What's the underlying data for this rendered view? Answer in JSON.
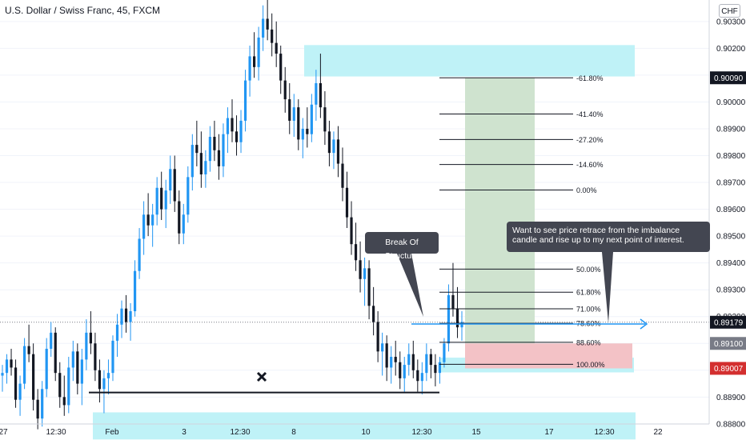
{
  "header": {
    "symbol_title": "U.S. Dollar / Swiss Franc, 45, FXCM",
    "currency_button": "CHF"
  },
  "annotations": {
    "break_of_structure": "Break Of Structure",
    "note": "Want to see price retrace from the imbalance candle and rise up to my next point of interest."
  },
  "chart_data": {
    "type": "candlestick",
    "symbol": "U.S. Dollar / Swiss Franc",
    "interval": "45",
    "source": "FXCM",
    "currency": "CHF",
    "ylim": [
      0.8874,
      0.9038
    ],
    "y_tick_labels": [
      "0.90300",
      "0.90200",
      "0.90100",
      "0.90000",
      "0.89900",
      "0.89800",
      "0.89700",
      "0.89600",
      "0.89500",
      "0.89400",
      "0.89300",
      "0.89200",
      "0.89100",
      "0.89000",
      "0.88900",
      "0.88800"
    ],
    "y_ticks": [
      0.903,
      0.902,
      0.901,
      0.9,
      0.899,
      0.898,
      0.897,
      0.896,
      0.895,
      0.894,
      0.893,
      0.892,
      0.891,
      0.89,
      0.889,
      0.888
    ],
    "x_tick_labels": [
      "27",
      "12:30",
      "Feb",
      "3",
      "12:30",
      "8",
      "10",
      "12:30",
      "15",
      "17",
      "12:30",
      "22"
    ],
    "price_labels": [
      {
        "text": "0.90090",
        "value": 0.9009,
        "color": "#131722"
      },
      {
        "text": "0.89179",
        "value": 0.89179,
        "color": "#131722"
      },
      {
        "text": "0.89100",
        "value": 0.891,
        "color": "#787b86"
      },
      {
        "text": "0.89007",
        "value": 0.89007,
        "color": "#d32f2f"
      }
    ],
    "current_price": 0.89179,
    "fib_levels": [
      {
        "label": "-61.80%",
        "value": 0.9009
      },
      {
        "label": "-41.40%",
        "value": 0.89955
      },
      {
        "label": "-27.20%",
        "value": 0.8986
      },
      {
        "label": "-14.60%",
        "value": 0.89767
      },
      {
        "label": "0.00%",
        "value": 0.89672
      },
      {
        "label": "50.00%",
        "value": 0.89377
      },
      {
        "label": "61.80%",
        "value": 0.89291
      },
      {
        "label": "71.00%",
        "value": 0.89229
      },
      {
        "label": "78.60%",
        "value": 0.89175
      },
      {
        "label": "88.60%",
        "value": 0.89104
      },
      {
        "label": "100.00%",
        "value": 0.89022
      }
    ],
    "zones": [
      {
        "name": "supply-zone",
        "top": 0.90212,
        "bottom": 0.90095,
        "color": "#bff2f7"
      },
      {
        "name": "imbalance-zone",
        "top": 0.89047,
        "bottom": 0.88992,
        "color": "#bff2f7"
      },
      {
        "name": "demand-zone",
        "top": 0.88843,
        "bottom": 0.88742,
        "color": "#bff2f7"
      }
    ],
    "position": {
      "target": 0.9009,
      "entry": 0.891,
      "stop": 0.89007,
      "profit_color": "#cfe3cf",
      "loss_color": "#f3c2c6"
    },
    "structure_low": 0.88917,
    "candles_key": [
      "open",
      "high",
      "low",
      "close"
    ],
    "candles": [
      [
        0.8898,
        0.8902,
        0.8892,
        0.8899
      ],
      [
        0.8899,
        0.8906,
        0.8895,
        0.8904
      ],
      [
        0.8904,
        0.8908,
        0.8898,
        0.8901
      ],
      [
        0.8901,
        0.8904,
        0.8886,
        0.8889
      ],
      [
        0.8889,
        0.8898,
        0.8883,
        0.8895
      ],
      [
        0.8895,
        0.8912,
        0.8893,
        0.8909
      ],
      [
        0.8909,
        0.8917,
        0.8903,
        0.8906
      ],
      [
        0.8906,
        0.891,
        0.8885,
        0.8889
      ],
      [
        0.8889,
        0.8893,
        0.8878,
        0.8882
      ],
      [
        0.8882,
        0.8896,
        0.8879,
        0.8893
      ],
      [
        0.8893,
        0.8912,
        0.889,
        0.8908
      ],
      [
        0.8908,
        0.8918,
        0.8905,
        0.8914
      ],
      [
        0.8914,
        0.8916,
        0.8896,
        0.8899
      ],
      [
        0.8899,
        0.8903,
        0.8886,
        0.889
      ],
      [
        0.889,
        0.8898,
        0.8883,
        0.8887
      ],
      [
        0.8887,
        0.8905,
        0.8884,
        0.8901
      ],
      [
        0.8901,
        0.8911,
        0.8896,
        0.8907
      ],
      [
        0.8907,
        0.891,
        0.8891,
        0.8895
      ],
      [
        0.8895,
        0.8908,
        0.8887,
        0.8904
      ],
      [
        0.8904,
        0.8919,
        0.89,
        0.8914
      ],
      [
        0.8914,
        0.8922,
        0.8906,
        0.891
      ],
      [
        0.891,
        0.8914,
        0.8896,
        0.89
      ],
      [
        0.89,
        0.8904,
        0.8888,
        0.8893
      ],
      [
        0.8893,
        0.89,
        0.8884,
        0.8897
      ],
      [
        0.8897,
        0.8904,
        0.8891,
        0.8899
      ],
      [
        0.8899,
        0.8913,
        0.8896,
        0.8911
      ],
      [
        0.8911,
        0.8921,
        0.8905,
        0.8917
      ],
      [
        0.8917,
        0.8926,
        0.8912,
        0.8923
      ],
      [
        0.8923,
        0.8928,
        0.8914,
        0.8918
      ],
      [
        0.8918,
        0.8925,
        0.8911,
        0.8922
      ],
      [
        0.8922,
        0.8941,
        0.892,
        0.8937
      ],
      [
        0.8937,
        0.8953,
        0.8934,
        0.8949
      ],
      [
        0.8949,
        0.8963,
        0.8943,
        0.8958
      ],
      [
        0.8958,
        0.8966,
        0.895,
        0.8954
      ],
      [
        0.8954,
        0.8962,
        0.8946,
        0.8958
      ],
      [
        0.8958,
        0.8972,
        0.8954,
        0.8968
      ],
      [
        0.8968,
        0.8974,
        0.8956,
        0.896
      ],
      [
        0.896,
        0.8971,
        0.8953,
        0.8967
      ],
      [
        0.8967,
        0.898,
        0.8962,
        0.8975
      ],
      [
        0.8975,
        0.898,
        0.8959,
        0.8963
      ],
      [
        0.8963,
        0.8967,
        0.8947,
        0.8951
      ],
      [
        0.8951,
        0.8962,
        0.8947,
        0.8958
      ],
      [
        0.8958,
        0.8976,
        0.8955,
        0.8972
      ],
      [
        0.8972,
        0.8988,
        0.8967,
        0.8984
      ],
      [
        0.8984,
        0.8993,
        0.8976,
        0.8981
      ],
      [
        0.8981,
        0.8989,
        0.8968,
        0.8973
      ],
      [
        0.8973,
        0.8982,
        0.8968,
        0.8978
      ],
      [
        0.8978,
        0.8991,
        0.8974,
        0.8987
      ],
      [
        0.8987,
        0.8993,
        0.8978,
        0.8982
      ],
      [
        0.8982,
        0.8988,
        0.8971,
        0.8976
      ],
      [
        0.8976,
        0.8992,
        0.8972,
        0.8988
      ],
      [
        0.8988,
        0.8998,
        0.8981,
        0.8994
      ],
      [
        0.8994,
        0.9001,
        0.8985,
        0.8989
      ],
      [
        0.8989,
        0.8995,
        0.898,
        0.8985
      ],
      [
        0.8985,
        0.8997,
        0.8981,
        0.8993
      ],
      [
        0.8993,
        0.9012,
        0.8989,
        0.9008
      ],
      [
        0.9008,
        0.9021,
        0.9002,
        0.9017
      ],
      [
        0.9017,
        0.9026,
        0.9009,
        0.9013
      ],
      [
        0.9013,
        0.9028,
        0.9008,
        0.9024
      ],
      [
        0.9024,
        0.9036,
        0.9019,
        0.9031
      ],
      [
        0.9031,
        0.9038,
        0.9023,
        0.9027
      ],
      [
        0.9027,
        0.9033,
        0.9017,
        0.9022
      ],
      [
        0.9022,
        0.903,
        0.9013,
        0.9018
      ],
      [
        0.9018,
        0.9021,
        0.9003,
        0.9008
      ],
      [
        0.9008,
        0.9013,
        0.8996,
        0.9001
      ],
      [
        0.9001,
        0.9007,
        0.8988,
        0.8993
      ],
      [
        0.8993,
        0.9003,
        0.8987,
        0.8998
      ],
      [
        0.8998,
        0.9001,
        0.8982,
        0.8986
      ],
      [
        0.8986,
        0.8994,
        0.8979,
        0.899
      ],
      [
        0.899,
        0.8998,
        0.8983,
        0.8988
      ],
      [
        0.8988,
        0.9003,
        0.8985,
        0.8999
      ],
      [
        0.8999,
        0.9012,
        0.8993,
        0.9007
      ],
      [
        0.9007,
        0.9018,
        0.8994,
        0.8998
      ],
      [
        0.8998,
        0.9004,
        0.8984,
        0.8989
      ],
      [
        0.8989,
        0.8993,
        0.8976,
        0.8981
      ],
      [
        0.8981,
        0.8989,
        0.8975,
        0.8986
      ],
      [
        0.8986,
        0.8991,
        0.8972,
        0.8977
      ],
      [
        0.8977,
        0.8983,
        0.8963,
        0.8968
      ],
      [
        0.8968,
        0.8974,
        0.8953,
        0.8957
      ],
      [
        0.8957,
        0.8963,
        0.8943,
        0.8947
      ],
      [
        0.8947,
        0.8955,
        0.8937,
        0.8941
      ],
      [
        0.8941,
        0.8948,
        0.8929,
        0.8934
      ],
      [
        0.8934,
        0.8942,
        0.8924,
        0.8938
      ],
      [
        0.8938,
        0.8941,
        0.8919,
        0.8924
      ],
      [
        0.8924,
        0.8931,
        0.8913,
        0.8918
      ],
      [
        0.8918,
        0.8922,
        0.8903,
        0.8907
      ],
      [
        0.8907,
        0.8914,
        0.8898,
        0.891
      ],
      [
        0.891,
        0.8913,
        0.8896,
        0.8901
      ],
      [
        0.8901,
        0.8909,
        0.8895,
        0.8905
      ],
      [
        0.8905,
        0.8911,
        0.8898,
        0.8903
      ],
      [
        0.8903,
        0.8907,
        0.8893,
        0.8897
      ],
      [
        0.8897,
        0.8905,
        0.8892,
        0.8902
      ],
      [
        0.8902,
        0.891,
        0.8898,
        0.8906
      ],
      [
        0.8906,
        0.8911,
        0.8897,
        0.89
      ],
      [
        0.89,
        0.8904,
        0.8892,
        0.8896
      ],
      [
        0.8896,
        0.8903,
        0.8891,
        0.8899
      ],
      [
        0.8899,
        0.891,
        0.8896,
        0.8906
      ],
      [
        0.8906,
        0.8908,
        0.8897,
        0.8902
      ],
      [
        0.8902,
        0.8906,
        0.8894,
        0.8899
      ],
      [
        0.8899,
        0.8905,
        0.8895,
        0.8903
      ],
      [
        0.8903,
        0.8912,
        0.8901,
        0.891
      ],
      [
        0.891,
        0.8932,
        0.8907,
        0.8928
      ],
      [
        0.8928,
        0.894,
        0.892,
        0.8923
      ],
      [
        0.8923,
        0.8931,
        0.8912,
        0.8916
      ],
      [
        0.8916,
        0.8922,
        0.8911,
        0.8918
      ]
    ]
  }
}
